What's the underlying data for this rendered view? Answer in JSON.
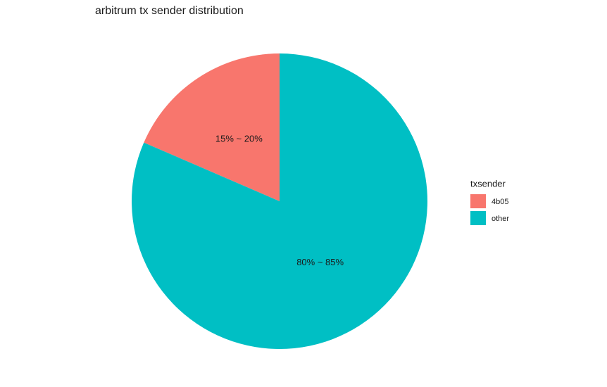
{
  "chart_data": {
    "type": "pie",
    "title": "arbitrum tx sender distribution",
    "categories": [
      "4b05",
      "other"
    ],
    "values": [
      18.5,
      81.5
    ],
    "value_labels": [
      "15% ~ 20%",
      "80% ~ 85%"
    ],
    "colors": [
      "#f8766d",
      "#00bfc4"
    ],
    "legend_title": "txsender",
    "legend": "right"
  }
}
